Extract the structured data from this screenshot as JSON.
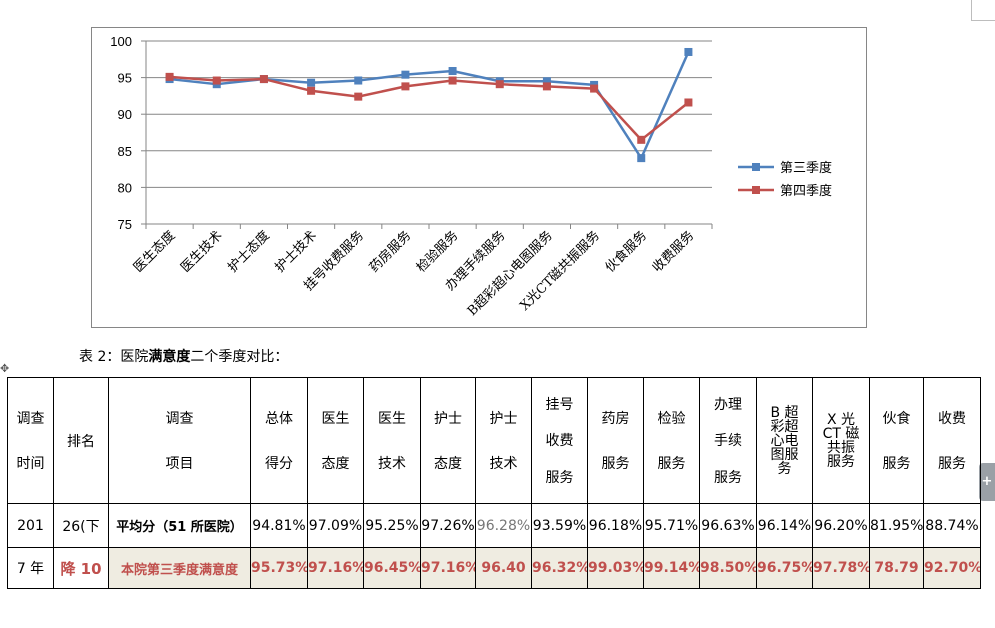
{
  "chart_data": {
    "type": "line",
    "categories": [
      "医生态度",
      "医生技术",
      "护士态度",
      "护士技术",
      "挂号收费服务",
      "药房服务",
      "检验服务",
      "办理手续服务",
      "B超彩超心电图服务",
      "X光CT磁共振服务",
      "伙食服务",
      "收费服务"
    ],
    "series": [
      {
        "name": "第三季度",
        "color": "#4f81bd",
        "values": [
          94.8,
          94.1,
          94.8,
          94.3,
          94.6,
          95.4,
          95.9,
          94.5,
          94.5,
          94.0,
          84.0,
          98.5
        ]
      },
      {
        "name": "第四季度",
        "color": "#c0504d",
        "values": [
          95.1,
          94.6,
          94.8,
          93.2,
          92.4,
          93.8,
          94.6,
          94.1,
          93.8,
          93.5,
          86.5,
          91.6
        ]
      }
    ],
    "ylim": [
      75,
      100
    ],
    "yticks": [
      "100",
      "95",
      "90",
      "85",
      "80",
      "75"
    ],
    "grid": true,
    "legend": "right"
  },
  "caption": {
    "prefix": "表 2：医院",
    "bold": "满意度",
    "suffix": "二个季度对比："
  },
  "table": {
    "headers": {
      "time": [
        "调查",
        "时间"
      ],
      "rank": "排名",
      "item": [
        "调查",
        "项目"
      ],
      "total": [
        "总体",
        "得分"
      ],
      "doc_att": [
        "医生",
        "态度"
      ],
      "doc_tech": [
        "医生",
        "技术"
      ],
      "nurse_att": [
        "护士",
        "态度"
      ],
      "nurse_tech": [
        "护士",
        "技术"
      ],
      "register": [
        "挂号",
        "收费",
        "服务"
      ],
      "pharmacy": [
        "药房",
        "服务"
      ],
      "lab": [
        "检验",
        "服务"
      ],
      "procedure": [
        "办理",
        "手续",
        "服务"
      ],
      "ultrasound": [
        "B 超",
        "彩超",
        "心电",
        "图服",
        "务"
      ],
      "xray": [
        "X 光",
        "CT 磁",
        "共振",
        "服务"
      ],
      "food": [
        "伙食",
        "服务"
      ],
      "billing": [
        "收费",
        "服务"
      ]
    },
    "time_top": "201",
    "time_bottom": "7 年",
    "rank_top": "26(下",
    "rank_bottom": "降 10",
    "avg_label": "平均分（51 所医院）",
    "avg_values": [
      "94.81%",
      "97.09%",
      "95.25%",
      "97.26%",
      "96.28%",
      "93.59%",
      "96.18%",
      "95.71%",
      "96.63%",
      "96.14%",
      "96.20%",
      "81.95%",
      "88.74%"
    ],
    "own_label": "本院第三季度满意度",
    "own_values": [
      "95.73%",
      "97.16%",
      "96.45%",
      "97.16%",
      "96.40",
      "96.32%",
      "99.03%",
      "99.14%",
      "98.50%",
      "96.75%",
      "97.78%",
      "78.79",
      "92.70%"
    ]
  }
}
